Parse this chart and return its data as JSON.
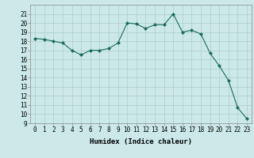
{
  "x": [
    0,
    1,
    2,
    3,
    4,
    5,
    6,
    7,
    8,
    9,
    10,
    11,
    12,
    13,
    14,
    15,
    16,
    17,
    18,
    19,
    20,
    21,
    22,
    23
  ],
  "y": [
    18.3,
    18.2,
    18.0,
    17.8,
    17.0,
    16.5,
    17.0,
    17.0,
    17.2,
    17.8,
    20.0,
    19.9,
    19.4,
    19.8,
    19.8,
    21.0,
    19.0,
    19.2,
    18.8,
    16.7,
    15.3,
    13.7,
    10.7,
    9.5
  ],
  "line_color": "#1a6b5a",
  "marker_color": "#1a6b5a",
  "bg_color": "#cce8e8",
  "grid_color": "#aacfcf",
  "xlabel": "Humidex (Indice chaleur)",
  "ylim": [
    9,
    22
  ],
  "xlim": [
    -0.5,
    23.5
  ],
  "yticks": [
    9,
    10,
    11,
    12,
    13,
    14,
    15,
    16,
    17,
    18,
    19,
    20,
    21
  ],
  "xticks": [
    0,
    1,
    2,
    3,
    4,
    5,
    6,
    7,
    8,
    9,
    10,
    11,
    12,
    13,
    14,
    15,
    16,
    17,
    18,
    19,
    20,
    21,
    22,
    23
  ],
  "axis_fontsize": 6.5,
  "tick_fontsize": 5.5
}
